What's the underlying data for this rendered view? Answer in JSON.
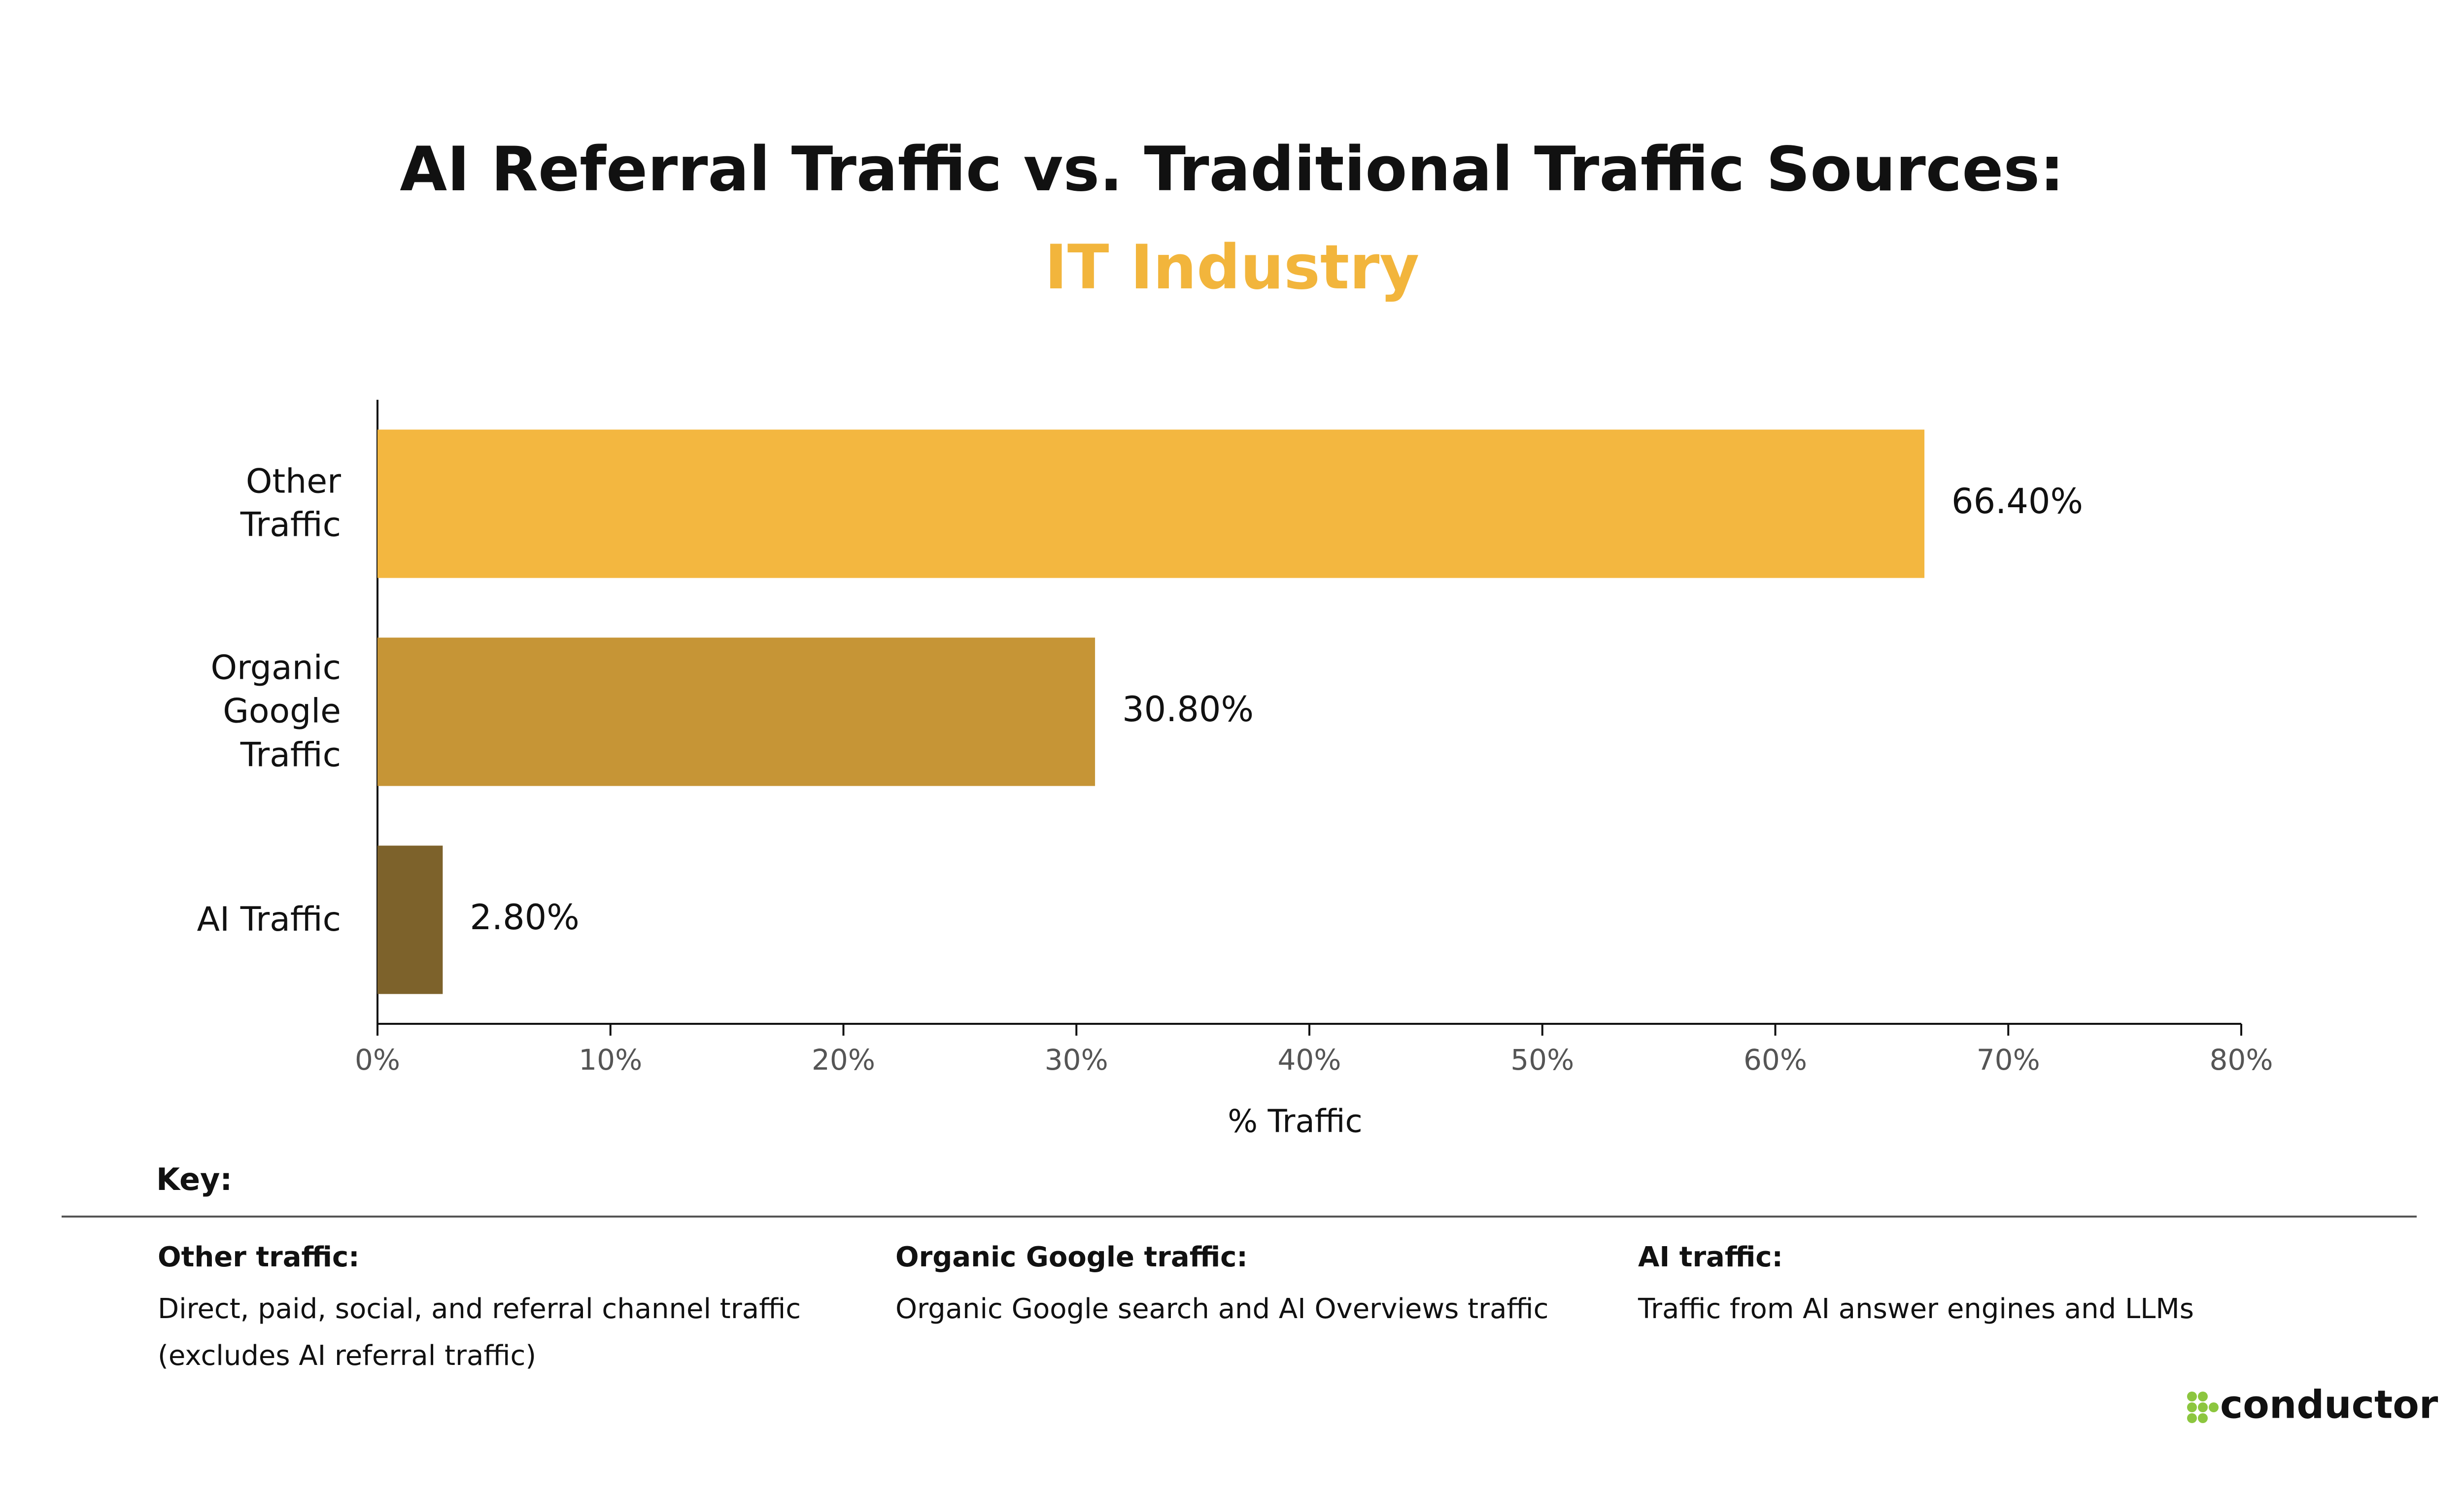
{
  "chart_data": {
    "type": "bar",
    "orientation": "horizontal",
    "title": "AI Referral Traffic vs. Traditional Traffic Sources:",
    "subtitle": "IT Industry",
    "categories": [
      "Other Traffic",
      "Organic Google Traffic",
      "AI Traffic"
    ],
    "values": [
      66.4,
      30.8,
      2.8
    ],
    "value_labels": [
      "66.40%",
      "30.80%",
      "2.80%"
    ],
    "colors": [
      "#f3b740",
      "#c69536",
      "#7d622b"
    ],
    "xlim": [
      0,
      80
    ],
    "xticks": [
      {
        "value": 0,
        "label": "0%"
      },
      {
        "value": 10,
        "label": "10%"
      },
      {
        "value": 20,
        "label": "20%"
      },
      {
        "value": 30,
        "label": "30%"
      },
      {
        "value": 40,
        "label": "40%"
      },
      {
        "value": 50,
        "label": "50%"
      },
      {
        "value": 60,
        "label": "60%"
      },
      {
        "value": 70,
        "label": "70%"
      },
      {
        "value": 80,
        "label": "80%"
      }
    ],
    "xlabel": "% Traffic"
  },
  "key": {
    "title": "Key:",
    "items": [
      {
        "title": "Other traffic:",
        "description": "Direct, paid, social, and referral channel traffic (excludes AI referral traffic)"
      },
      {
        "title": "Organic Google traffic:",
        "description": "Organic Google search and AI Overviews traffic"
      },
      {
        "title": "AI traffic:",
        "description": "Traffic from AI answer engines and LLMs"
      }
    ]
  },
  "brand": {
    "name": "conductor"
  }
}
